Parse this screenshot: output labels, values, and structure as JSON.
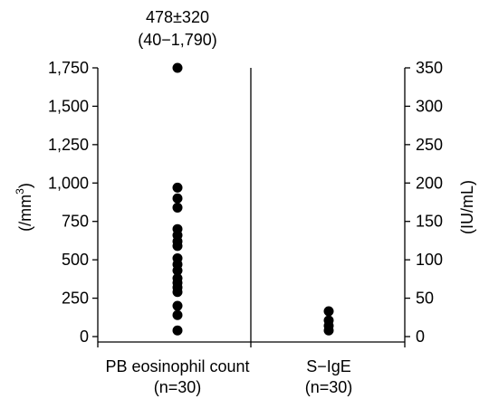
{
  "chart_data": {
    "type": "scatter",
    "annotation": {
      "line1": "478±320",
      "line2": "(40−1,790)"
    },
    "left_axis": {
      "label": "(/mm",
      "label_sup": "3",
      "label_close": ")",
      "ylim": [
        0,
        1750
      ],
      "ticks": [
        0,
        250,
        500,
        750,
        1000,
        1250,
        1500,
        1750
      ],
      "tick_labels": [
        "0",
        "250",
        "500",
        "750",
        "1,000",
        "1,250",
        "1,500",
        "1,750"
      ]
    },
    "right_axis": {
      "label": "(IU/mL)",
      "ylim": [
        0,
        350
      ],
      "ticks": [
        0,
        50,
        100,
        150,
        200,
        250,
        300,
        350
      ],
      "tick_labels": [
        "0",
        "50",
        "100",
        "150",
        "200",
        "250",
        "300",
        "350"
      ]
    },
    "categories": [
      {
        "line1": "PB eosinophil count",
        "line2": "(n=30)"
      },
      {
        "line1": "S−IgE",
        "line2": "(n=30)"
      }
    ],
    "series": [
      {
        "axis": "left",
        "category_index": 0,
        "values": [
          1750,
          970,
          900,
          840,
          700,
          660,
          620,
          590,
          510,
          470,
          430,
          380,
          350,
          320,
          290,
          200,
          140,
          40
        ]
      },
      {
        "axis": "right",
        "category_index": 1,
        "values": [
          33,
          21,
          14,
          8
        ]
      }
    ],
    "marker_color": "#000000",
    "grid": false
  }
}
